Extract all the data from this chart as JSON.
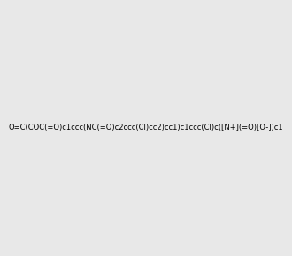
{
  "smiles": "O=C(COC(=O)c1ccc(NC(=O)c2ccc(Cl)cc2)cc1)c1ccc(Cl)c([N+](=O)[O-])c1",
  "image_size": 300,
  "background_color": "#e8e8e8",
  "atom_colors": {
    "N": "#0000ff",
    "O": "#ff0000",
    "Cl": "#00cc00"
  }
}
